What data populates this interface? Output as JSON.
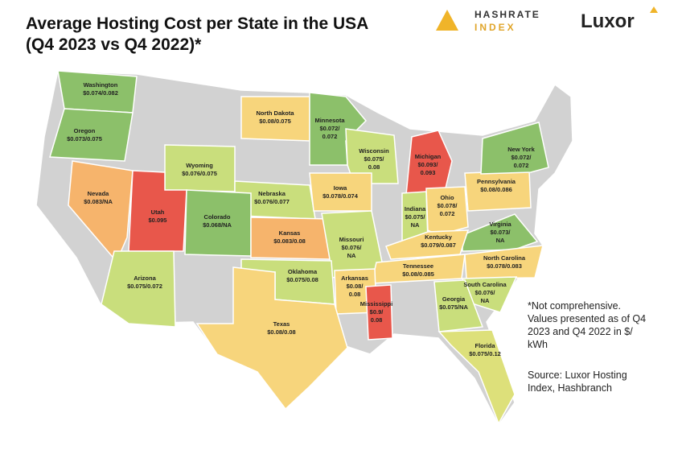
{
  "header": {
    "title_lines": [
      "Average Hosting Cost per State in the USA",
      "(Q4 2023 vs Q4 2022)*"
    ],
    "logo_1": [
      "HASHRATE",
      "INDEX"
    ],
    "logo_2": "Luxor"
  },
  "states": [
    {
      "name": "Washington",
      "lines": [
        "$0.074/0.082"
      ],
      "color": "#8cc06a"
    },
    {
      "name": "Oregon",
      "lines": [
        "$0.073/0.075"
      ],
      "color": "#8cc06a"
    },
    {
      "name": "North Dakota",
      "lines": [
        "$0.08/0.075"
      ],
      "color": "#f7d57c"
    },
    {
      "name": "Minnesota",
      "lines": [
        "$0.072/",
        "0.072"
      ],
      "color": "#8cc06a"
    },
    {
      "name": "Wisconsin",
      "lines": [
        "$0.075/",
        "0.08"
      ],
      "color": "#c9de7c"
    },
    {
      "name": "Michigan",
      "lines": [
        "$0.093/",
        "0.093"
      ],
      "color": "#e8574b"
    },
    {
      "name": "Wyoming",
      "lines": [
        "$0.076/0.075"
      ],
      "color": "#c9de7c"
    },
    {
      "name": "Nebraska",
      "lines": [
        "$0.076/0.077"
      ],
      "color": "#c9de7c"
    },
    {
      "name": "Iowa",
      "lines": [
        "$0.078/0.074"
      ],
      "color": "#f7d57c"
    },
    {
      "name": "Nevada",
      "lines": [
        "$0.083/NA"
      ],
      "color": "#f6b46c"
    },
    {
      "name": "Utah",
      "lines": [
        "$0.095"
      ],
      "color": "#e8574b"
    },
    {
      "name": "Colorado",
      "lines": [
        "$0.068/NA"
      ],
      "color": "#8cc06a"
    },
    {
      "name": "Kansas",
      "lines": [
        "$0.083/0.08"
      ],
      "color": "#f6b46c"
    },
    {
      "name": "Missouri",
      "lines": [
        "$0.076/",
        "NA"
      ],
      "color": "#c9de7c"
    },
    {
      "name": "Indiana",
      "lines": [
        "$0.075/",
        "NA"
      ],
      "color": "#c9de7c"
    },
    {
      "name": "Ohio",
      "lines": [
        "$0.078/",
        "0.072"
      ],
      "color": "#f7d57c"
    },
    {
      "name": "Pennsylvania",
      "lines": [
        "$0.08/0.086"
      ],
      "color": "#f7d57c"
    },
    {
      "name": "New York",
      "lines": [
        "$0.072/",
        "0.072"
      ],
      "color": "#8cc06a"
    },
    {
      "name": "Virginia",
      "lines": [
        "$0.073/",
        "NA"
      ],
      "color": "#8cc06a"
    },
    {
      "name": "Kentucky",
      "lines": [
        "$0.079/0.087"
      ],
      "color": "#f7d57c"
    },
    {
      "name": "Tennessee",
      "lines": [
        "$0.08/0.085"
      ],
      "color": "#f7d57c"
    },
    {
      "name": "North Carolina",
      "lines": [
        "$0.078/0.083"
      ],
      "color": "#f7d57c"
    },
    {
      "name": "South Carolina",
      "lines": [
        "$0.076/",
        "NA"
      ],
      "color": "#c9de7c"
    },
    {
      "name": "Georgia",
      "lines": [
        "$0.075/NA"
      ],
      "color": "#c9de7c"
    },
    {
      "name": "Florida",
      "lines": [
        "$0.075/0.12"
      ],
      "color": "#dde07a"
    },
    {
      "name": "Arizona",
      "lines": [
        "$0.075/0.072"
      ],
      "color": "#c9de7c"
    },
    {
      "name": "Oklahoma",
      "lines": [
        "$0.075/0.08"
      ],
      "color": "#c9de7c"
    },
    {
      "name": "Arkansas",
      "lines": [
        "$0.08/",
        "0.08"
      ],
      "color": "#f7d57c"
    },
    {
      "name": "Texas",
      "lines": [
        "$0.08/0.08"
      ],
      "color": "#f7d57c"
    },
    {
      "name": "Mississippi",
      "lines": [
        "$0.9/",
        "0.08"
      ],
      "color": "#e8574b"
    }
  ],
  "note": [
    "*Not comprehensive.",
    "Values presented as of Q4",
    "2023 and Q4 2022 in $/",
    "kWh"
  ],
  "source": [
    "Source: Luxor Hosting",
    "Index, Hashbranch"
  ]
}
